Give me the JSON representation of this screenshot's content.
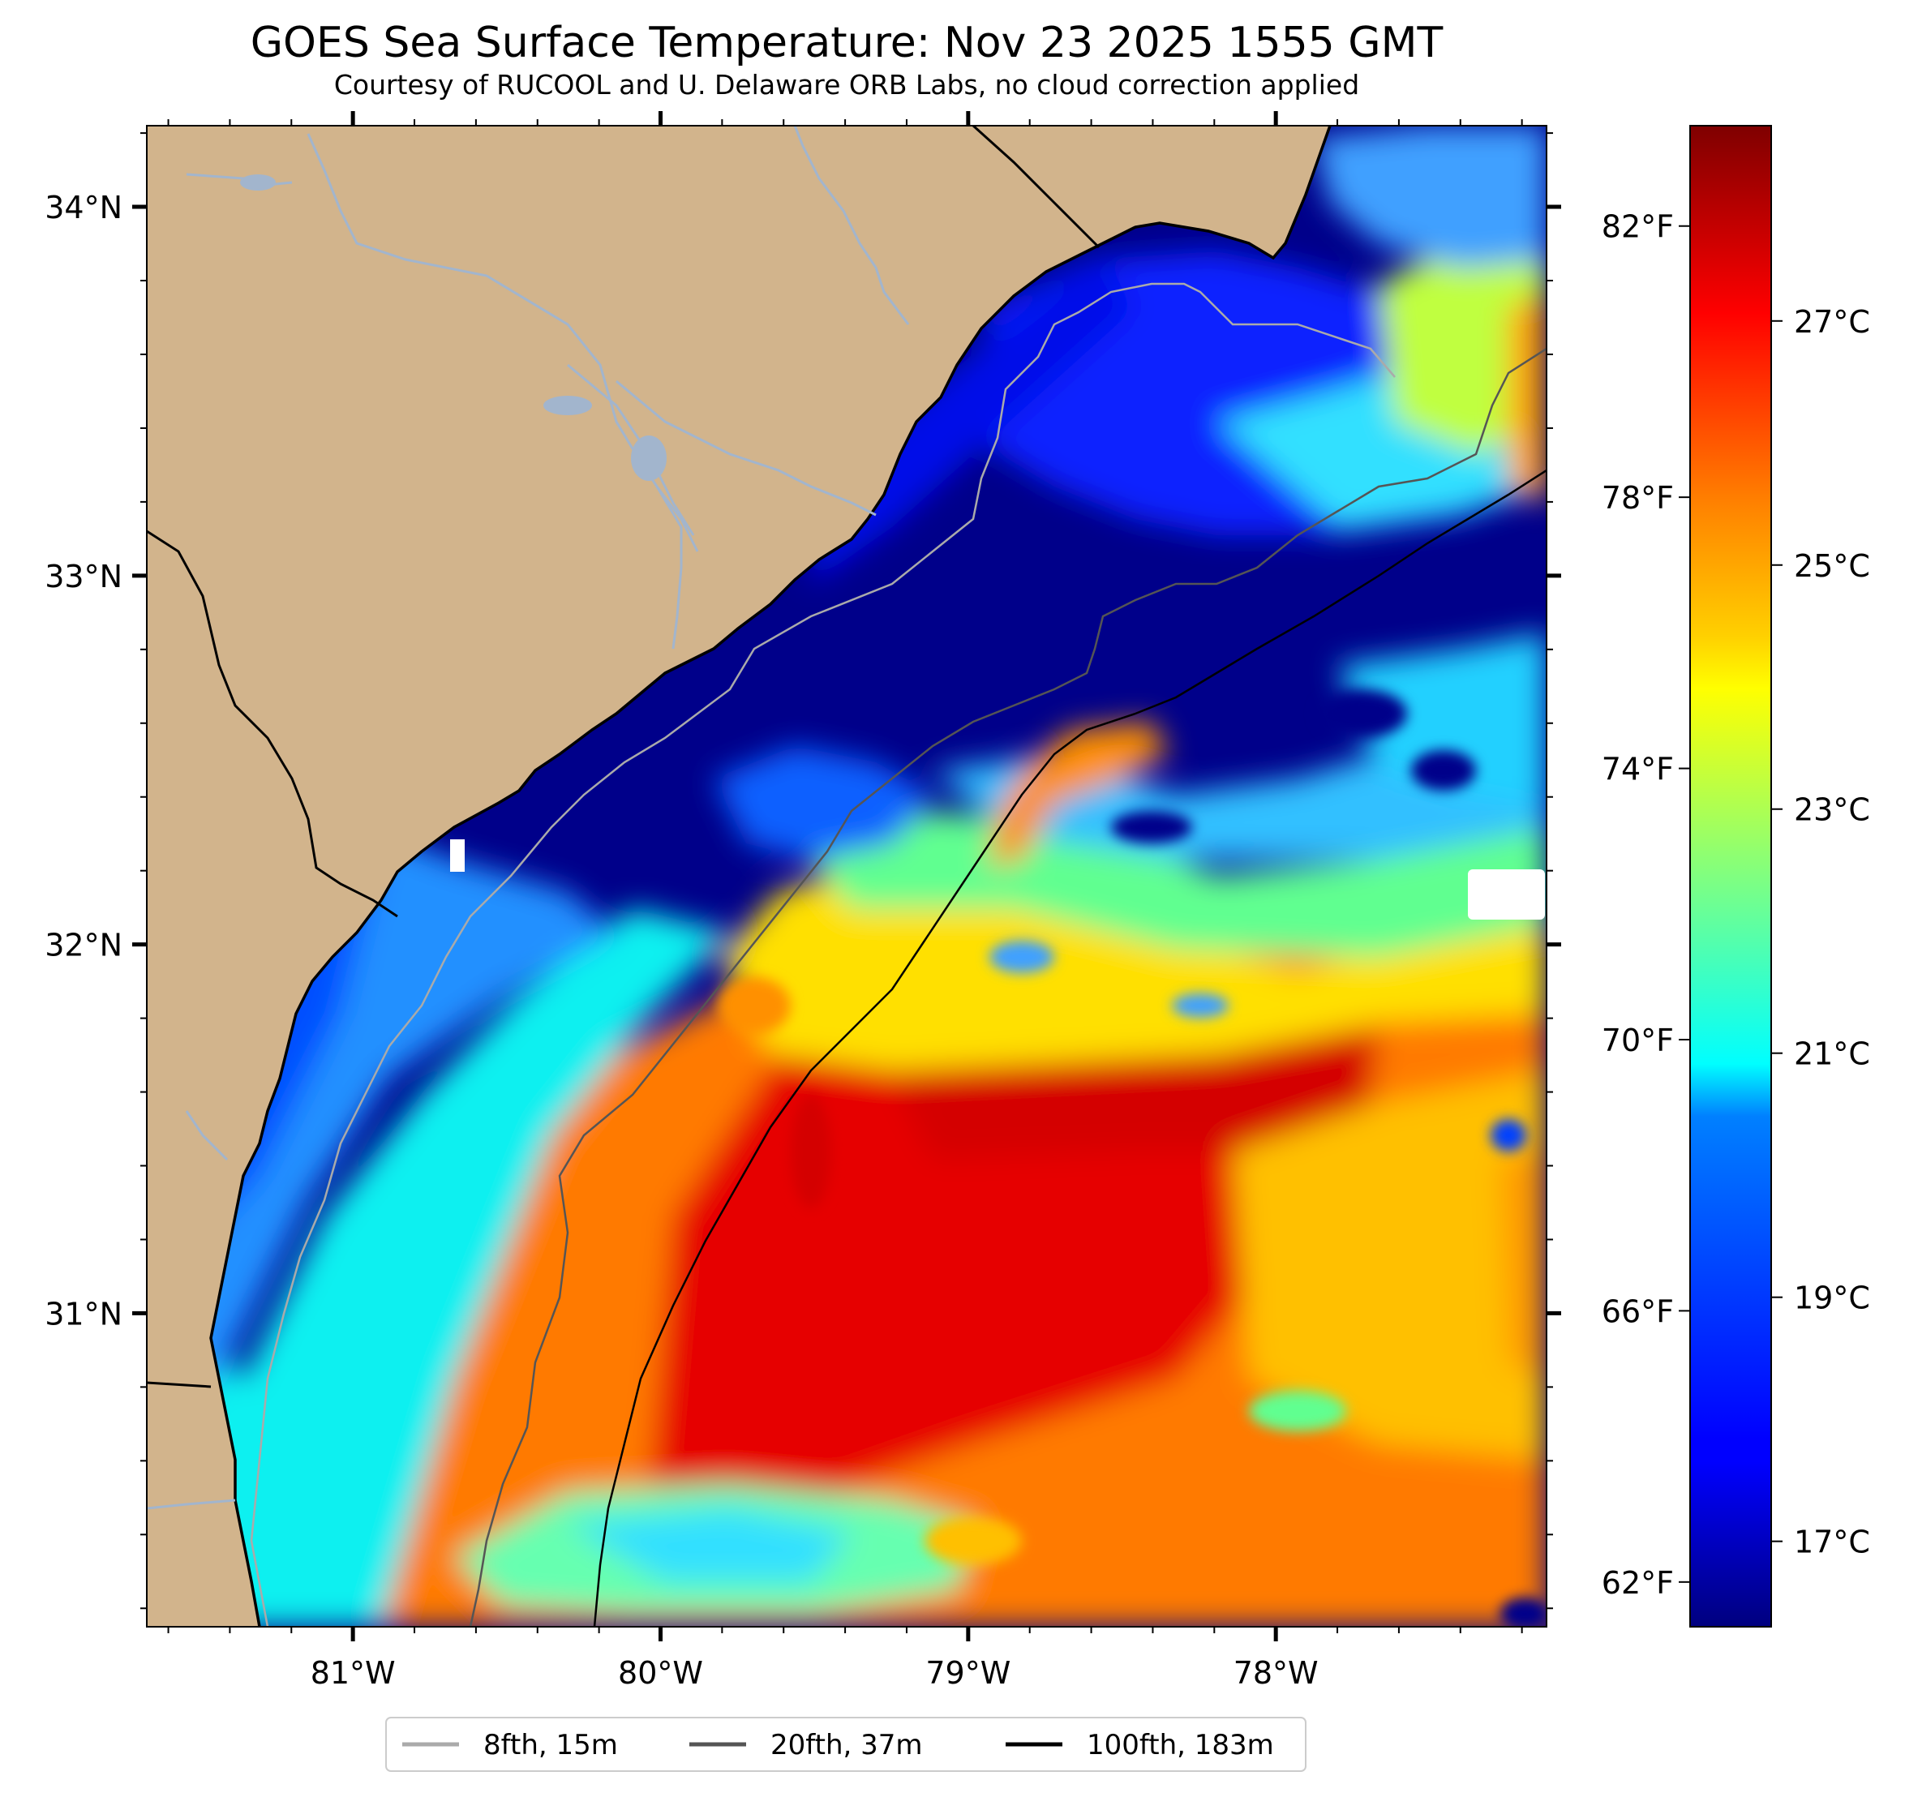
{
  "title": "GOES Sea Surface Temperature: Nov 23 2025 1555 GMT",
  "subtitle": "Courtesy of RUCOOL and U. Delaware ORB Labs, no cloud correction applied",
  "map": {
    "lon_ticks": [
      {
        "value": -81,
        "label": "81°W"
      },
      {
        "value": -80,
        "label": "80°W"
      },
      {
        "value": -79,
        "label": "79°W"
      },
      {
        "value": -78,
        "label": "78°W"
      }
    ],
    "lat_ticks": [
      {
        "value": 34,
        "label": "34°N"
      },
      {
        "value": 33,
        "label": "33°N"
      },
      {
        "value": 32,
        "label": "32°N"
      },
      {
        "value": 31,
        "label": "31°N"
      }
    ],
    "extent": {
      "lon_min": -81.67,
      "lon_max": -77.12,
      "lat_min": 30.15,
      "lat_max": 34.22
    },
    "colors": {
      "land": "#d2b48c",
      "river": "#a2b5cd",
      "border": "#000000",
      "no_data": "#ffffff"
    }
  },
  "colorbar": {
    "colormap": "jet",
    "range_c": [
      16.3,
      28.6
    ],
    "celsius_ticks": [
      {
        "value": 17,
        "label": "17°C"
      },
      {
        "value": 19,
        "label": "19°C"
      },
      {
        "value": 21,
        "label": "21°C"
      },
      {
        "value": 23,
        "label": "23°C"
      },
      {
        "value": 25,
        "label": "25°C"
      },
      {
        "value": 27,
        "label": "27°C"
      }
    ],
    "fahrenheit_ticks": [
      {
        "value": 62,
        "label": "62°F"
      },
      {
        "value": 66,
        "label": "66°F"
      },
      {
        "value": 70,
        "label": "70°F"
      },
      {
        "value": 74,
        "label": "74°F"
      },
      {
        "value": 78,
        "label": "78°F"
      },
      {
        "value": 82,
        "label": "82°F"
      }
    ]
  },
  "legend": {
    "items": [
      {
        "label": "8fth, 15m",
        "color": "#aaaaaa"
      },
      {
        "label": "20fth, 37m",
        "color": "#555555"
      },
      {
        "label": "100fth, 183m",
        "color": "#000000"
      }
    ]
  }
}
